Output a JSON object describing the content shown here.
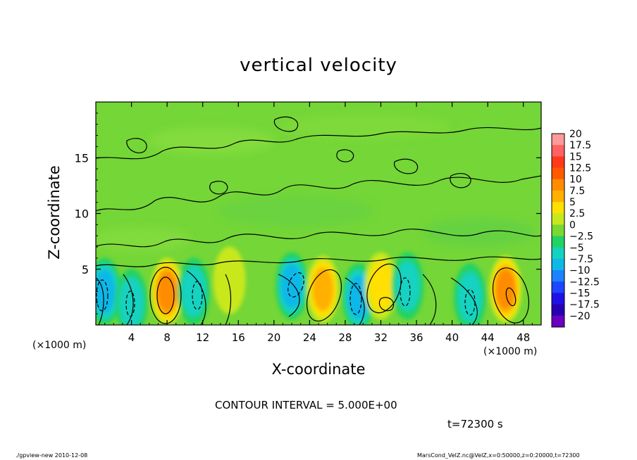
{
  "chart_data": {
    "type": "heatmap",
    "title": "vertical velocity",
    "xlabel": "X-coordinate",
    "ylabel": "Z-coordinate",
    "x_unit_label_left": "(×1000 m)",
    "x_unit_label_right": "(×1000 m)",
    "xlim": [
      0,
      50
    ],
    "ylim": [
      0,
      20
    ],
    "x_ticks": [
      4,
      8,
      12,
      16,
      20,
      24,
      28,
      32,
      36,
      40,
      44,
      48
    ],
    "y_ticks": [
      5,
      10,
      15
    ],
    "colorbar": {
      "labels": [
        "20",
        "17.5",
        "15",
        "12.5",
        "10",
        "7.5",
        "5",
        "2.5",
        "0",
        "−2.5",
        "−5",
        "−7.5",
        "−10",
        "−12.5",
        "−15",
        "−17.5",
        "−20"
      ],
      "colors": [
        "#ff9a9a",
        "#ff6262",
        "#ff3a1a",
        "#ff5a00",
        "#ff8c00",
        "#ffb000",
        "#ffe000",
        "#c8e81e",
        "#7ad832",
        "#22d264",
        "#14d2c0",
        "#10b8e8",
        "#1c82ff",
        "#1c46ff",
        "#2010e8",
        "#2800b4",
        "#6a00c0"
      ]
    },
    "features": [
      {
        "kind": "updraft",
        "x": 8,
        "z": 3,
        "peak": 10
      },
      {
        "kind": "downdraft",
        "x": 1,
        "z": 3,
        "peak": -7.5
      },
      {
        "kind": "downdraft",
        "x": 4,
        "z": 2,
        "peak": -5
      },
      {
        "kind": "downdraft",
        "x": 11,
        "z": 3,
        "peak": -5
      },
      {
        "kind": "updraft",
        "x": 15,
        "z": 4,
        "peak": 2.5
      },
      {
        "kind": "downdraft",
        "x": 22,
        "z": 3.5,
        "peak": -7.5
      },
      {
        "kind": "updraft",
        "x": 25.5,
        "z": 3.2,
        "peak": 7.5
      },
      {
        "kind": "downdraft",
        "x": 29.5,
        "z": 2.5,
        "peak": -7.5
      },
      {
        "kind": "updraft",
        "x": 32,
        "z": 3.5,
        "peak": 5
      },
      {
        "kind": "downdraft",
        "x": 35,
        "z": 3.5,
        "peak": -5
      },
      {
        "kind": "downdraft",
        "x": 42,
        "z": 2.5,
        "peak": -5
      },
      {
        "kind": "updraft",
        "x": 46,
        "z": 3.2,
        "peak": 10
      }
    ]
  },
  "annotations": {
    "contour_interval": "CONTOUR INTERVAL = 5.000E+00",
    "time": "t=72300 s",
    "footer_left": "./gpview-new   2010-12-08",
    "footer_right": "MarsCond_VelZ.nc@VelZ,x=0:50000,z=0:20000,t=72300"
  }
}
